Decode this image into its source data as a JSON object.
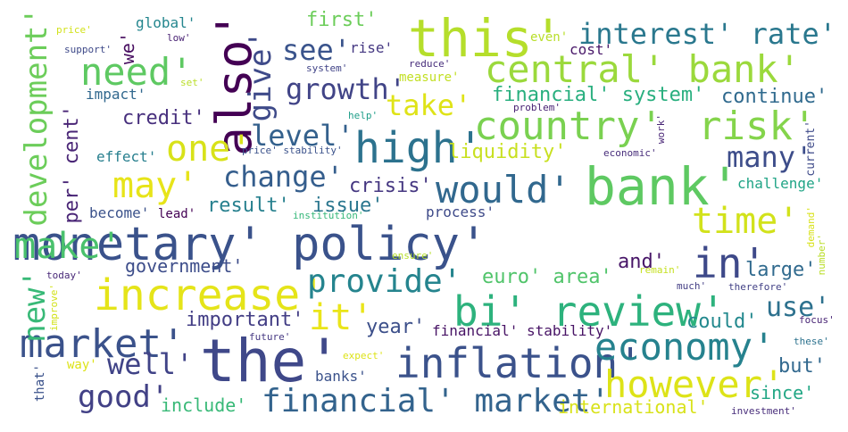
{
  "words": [
    {
      "text": "monetary' policy'",
      "color": "#3a528b"
    },
    {
      "text": "the'",
      "color": "#3f4889"
    },
    {
      "text": "bank'",
      "color": "#5ec962"
    },
    {
      "text": "this'",
      "color": "#b5de2b"
    },
    {
      "text": "central' bank'",
      "color": "#9bd93c"
    },
    {
      "text": "increase'",
      "color": "#e5e419"
    },
    {
      "text": "inflation'",
      "color": "#3b528b"
    },
    {
      "text": "bi' review'",
      "color": "#2db27d"
    },
    {
      "text": "also'",
      "color": "#440154"
    },
    {
      "text": "high'",
      "color": "#2c728e"
    },
    {
      "text": "country'",
      "color": "#7ad151"
    },
    {
      "text": "risk'",
      "color": "#84d44b"
    },
    {
      "text": "make'",
      "color": "#4ac16d"
    },
    {
      "text": "market'",
      "color": "#3b528b"
    },
    {
      "text": "economy'",
      "color": "#26828e"
    },
    {
      "text": "would'",
      "color": "#31688e"
    },
    {
      "text": "however'",
      "color": "#dde318"
    },
    {
      "text": "time'",
      "color": "#d2e21b"
    },
    {
      "text": "in'",
      "color": "#3e4989"
    },
    {
      "text": "financial' market'",
      "color": "#33638d"
    },
    {
      "text": "interest' rate'",
      "color": "#2a788e"
    },
    {
      "text": "need'",
      "color": "#5ec962"
    },
    {
      "text": "one'",
      "color": "#d8e219"
    },
    {
      "text": "may'",
      "color": "#e7e419"
    },
    {
      "text": "it'",
      "color": "#eae51a"
    },
    {
      "text": "development'",
      "color": "#6ccd5a"
    },
    {
      "text": "provide'",
      "color": "#25848e"
    },
    {
      "text": "well'",
      "color": "#404387"
    },
    {
      "text": "good'",
      "color": "#424186"
    },
    {
      "text": "give'",
      "color": "#3e4a89"
    },
    {
      "text": "growth'",
      "color": "#414487"
    },
    {
      "text": "take'",
      "color": "#dfe318"
    },
    {
      "text": "change'",
      "color": "#355e8d"
    },
    {
      "text": "see'",
      "color": "#3a548c"
    },
    {
      "text": "level'",
      "color": "#34618d"
    },
    {
      "text": "many'",
      "color": "#3d4d8a"
    },
    {
      "text": "new'",
      "color": "#38b977"
    },
    {
      "text": "use'",
      "color": "#2d718e"
    },
    {
      "text": "financial' system'",
      "color": "#29af7f"
    },
    {
      "text": "continue'",
      "color": "#306a8e"
    },
    {
      "text": "credit'",
      "color": "#472f7d"
    },
    {
      "text": "per' cent'",
      "color": "#482475"
    },
    {
      "text": "liquidity'",
      "color": "#c8e020"
    },
    {
      "text": "crisis'",
      "color": "#453781"
    },
    {
      "text": "result'",
      "color": "#27808e"
    },
    {
      "text": "issue'",
      "color": "#2a768e"
    },
    {
      "text": "euro' area'",
      "color": "#50c46a"
    },
    {
      "text": "large'",
      "color": "#306a8e"
    },
    {
      "text": "and'",
      "color": "#481668"
    },
    {
      "text": "could'",
      "color": "#23898e"
    },
    {
      "text": "important'",
      "color": "#433e85"
    },
    {
      "text": "year'",
      "color": "#3c4f8a"
    },
    {
      "text": "government'",
      "color": "#3d4d8a"
    },
    {
      "text": "first'",
      "color": "#6ccd5a"
    },
    {
      "text": "measure'",
      "color": "#c2df23"
    },
    {
      "text": "financial' stability'",
      "color": "#471365"
    },
    {
      "text": "include'",
      "color": "#38b977"
    },
    {
      "text": "international'",
      "color": "#d8e219"
    },
    {
      "text": "but'",
      "color": "#31688e"
    },
    {
      "text": "since'",
      "color": "#22a785"
    },
    {
      "text": "banks'",
      "color": "#3b528b"
    },
    {
      "text": "we'",
      "color": "#470d60"
    },
    {
      "text": "global'",
      "color": "#24868e"
    },
    {
      "text": "rise'",
      "color": "#453882"
    },
    {
      "text": "effect'",
      "color": "#277f8e"
    },
    {
      "text": "become'",
      "color": "#3b528b"
    },
    {
      "text": "lead'",
      "color": "#440154"
    },
    {
      "text": "process'",
      "color": "#3e4a89"
    },
    {
      "text": "challenge'",
      "color": "#20a486"
    },
    {
      "text": "cost'",
      "color": "#481769"
    },
    {
      "text": "even'",
      "color": "#b8de29"
    },
    {
      "text": "impact'",
      "color": "#31688e"
    },
    {
      "text": "price'",
      "color": "#d2e21b"
    },
    {
      "text": "support'",
      "color": "#3e4989"
    },
    {
      "text": "low'",
      "color": "#482173"
    },
    {
      "text": "system'",
      "color": "#404387"
    },
    {
      "text": "reduce'",
      "color": "#472d7b"
    },
    {
      "text": "problem'",
      "color": "#482173"
    },
    {
      "text": "help'",
      "color": "#1f9e89"
    },
    {
      "text": "set'",
      "color": "#bade28"
    },
    {
      "text": "price' stability'",
      "color": "#3b528b"
    },
    {
      "text": "economic'",
      "color": "#472c7a"
    },
    {
      "text": "work'",
      "color": "#482576"
    },
    {
      "text": "current'",
      "color": "#3e4a89"
    },
    {
      "text": "institution'",
      "color": "#35b779"
    },
    {
      "text": "demand'",
      "color": "#d8e219"
    },
    {
      "text": "number'",
      "color": "#bade28"
    },
    {
      "text": "ensure'",
      "color": "#b5de2b"
    },
    {
      "text": "remain'",
      "color": "#c5e021"
    },
    {
      "text": "today'",
      "color": "#482878"
    },
    {
      "text": "improve'",
      "color": "#d2e21b"
    },
    {
      "text": "much'",
      "color": "#433d84"
    },
    {
      "text": "therefore'",
      "color": "#424186"
    },
    {
      "text": "focus'",
      "color": "#482475"
    },
    {
      "text": "future'",
      "color": "#453882"
    },
    {
      "text": "expect'",
      "color": "#dde318"
    },
    {
      "text": "these'",
      "color": "#2c728e"
    },
    {
      "text": "that'",
      "color": "#3b528b"
    },
    {
      "text": "way'",
      "color": "#dde318"
    },
    {
      "text": "investment'",
      "color": "#472c7a"
    }
  ]
}
